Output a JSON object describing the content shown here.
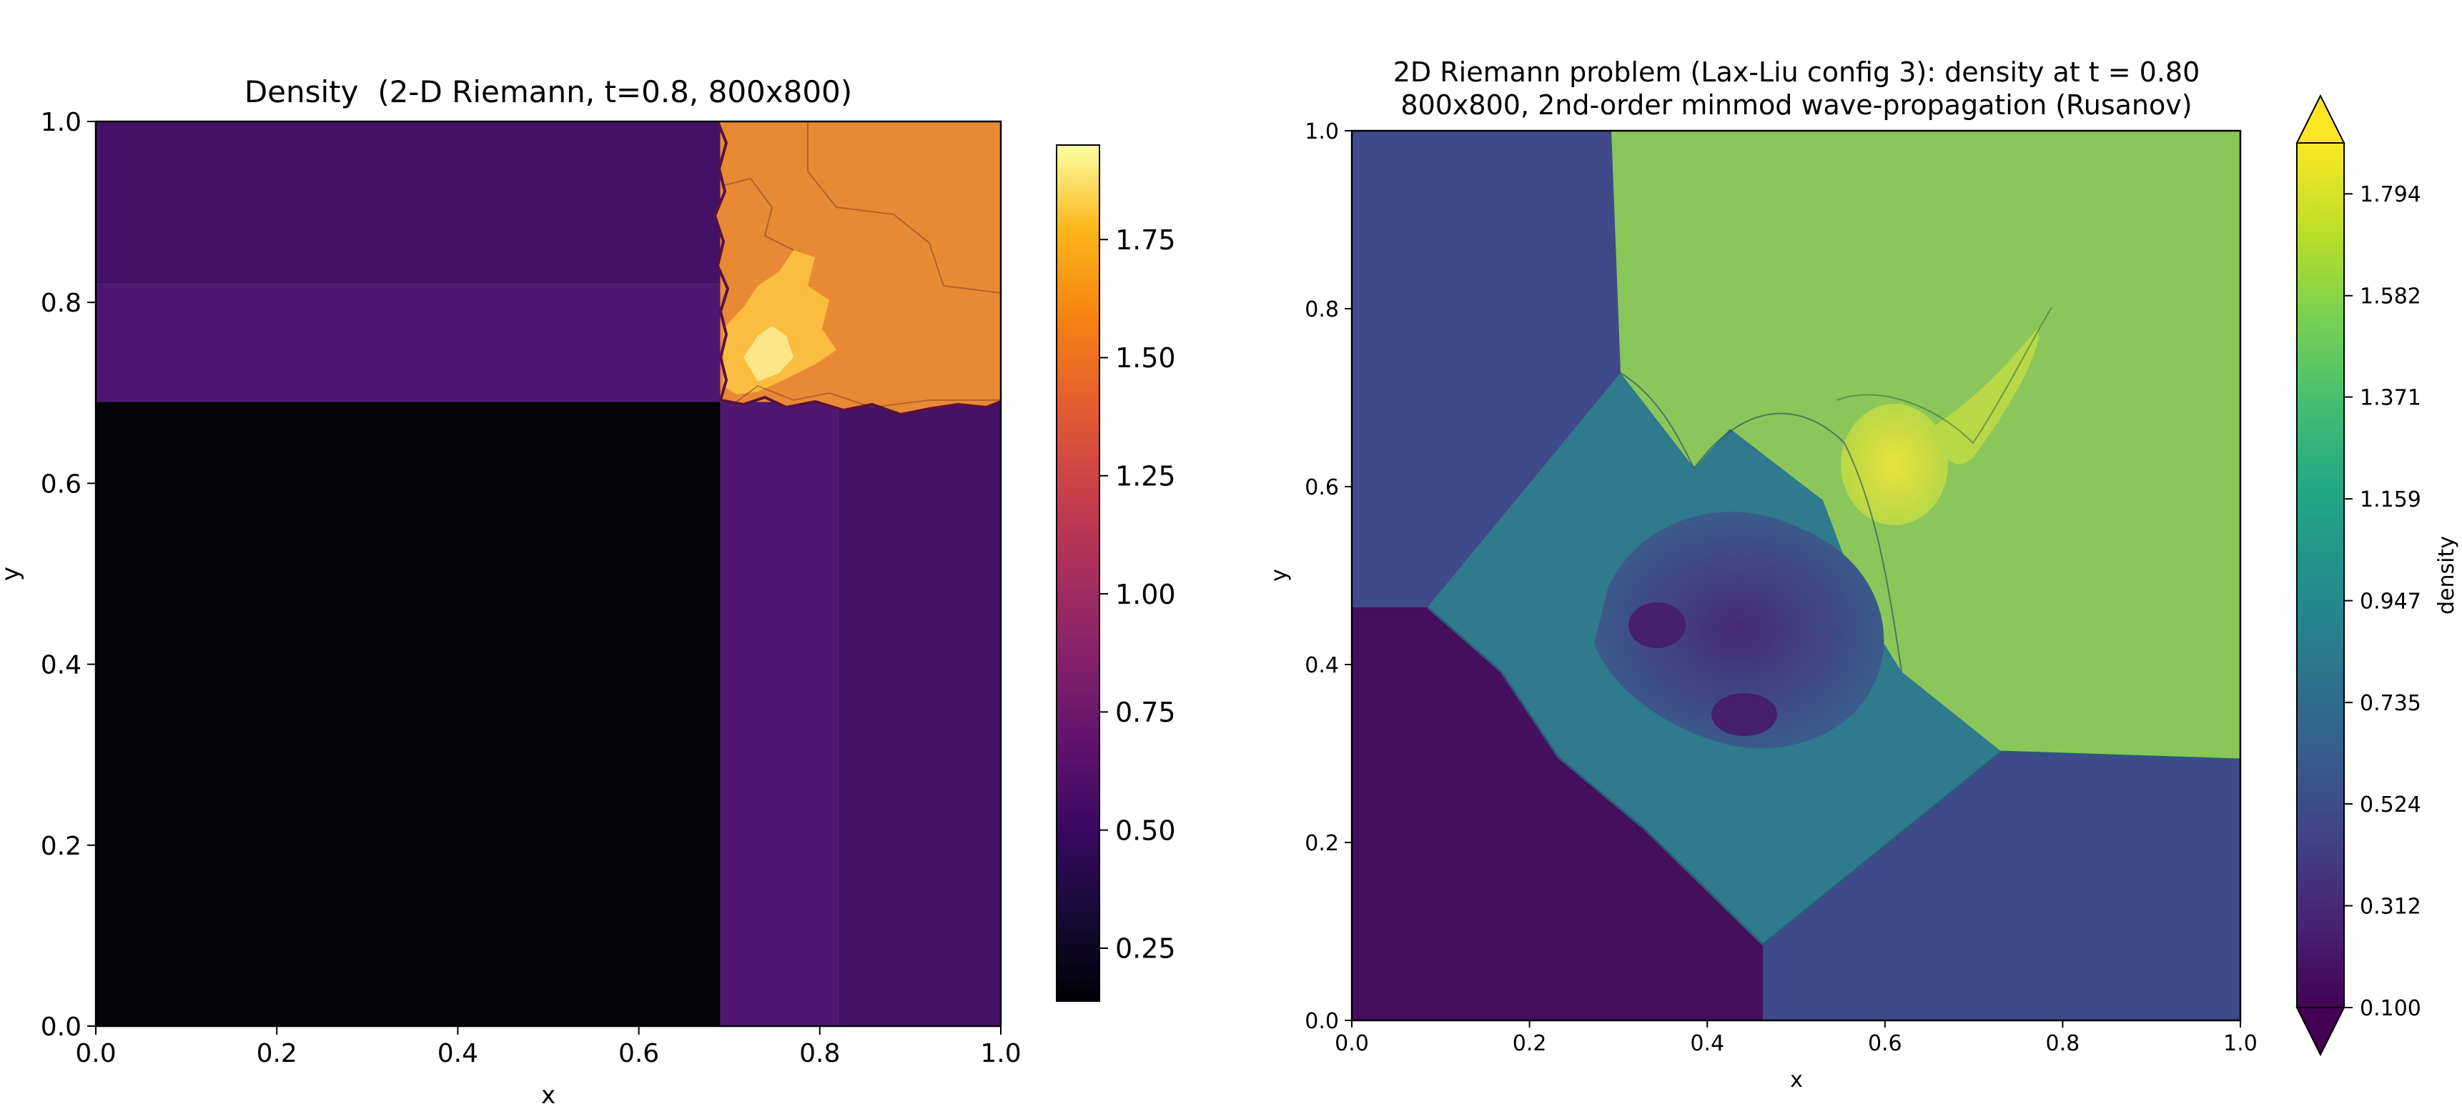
{
  "chart_data": [
    {
      "type": "heatmap",
      "title": "Density  (2-D Riemann, t=0.8, 800x800)",
      "xlabel": "x",
      "ylabel": "y",
      "xlim": [
        0.0,
        1.0
      ],
      "ylim": [
        0.0,
        1.0
      ],
      "x_ticks": [
        "0.0",
        "0.2",
        "0.4",
        "0.6",
        "0.8",
        "1.0"
      ],
      "y_ticks": [
        "0.0",
        "0.2",
        "0.4",
        "0.6",
        "0.8",
        "1.0"
      ],
      "colormap": "inferno",
      "colorbar": {
        "range": [
          0.138,
          1.95
        ],
        "ticks": [
          "0.25",
          "0.50",
          "0.75",
          "1.00",
          "1.25",
          "1.50",
          "1.75"
        ],
        "label": ""
      },
      "regions": [
        {
          "x": [
            0.0,
            0.69
          ],
          "y": [
            0.0,
            0.69
          ],
          "value": 0.138,
          "color": "#040308"
        },
        {
          "x": [
            0.0,
            0.69
          ],
          "y": [
            0.69,
            0.82
          ],
          "value": 0.55,
          "color": "#4e1670"
        },
        {
          "x": [
            0.0,
            0.69
          ],
          "y": [
            0.82,
            1.0
          ],
          "value": 0.5,
          "color": "#431266"
        },
        {
          "x": [
            0.69,
            0.82
          ],
          "y": [
            0.0,
            0.69
          ],
          "value": 0.56,
          "color": "#4f1771"
        },
        {
          "x": [
            0.82,
            1.0
          ],
          "y": [
            0.0,
            0.69
          ],
          "value": 0.5,
          "color": "#441266"
        },
        {
          "x": [
            0.69,
            1.0
          ],
          "y": [
            0.69,
            1.0
          ],
          "value": 1.5,
          "color": "#ea8c34"
        }
      ],
      "grid": false
    },
    {
      "type": "heatmap",
      "title": "2D Riemann problem (Lax-Liu config 3): density at t = 0.80",
      "subtitle": "800x800, 2nd-order minmod wave-propagation (Rusanov)",
      "xlabel": "x",
      "ylabel": "y",
      "xlim": [
        0.0,
        1.0
      ],
      "ylim": [
        0.0,
        1.0
      ],
      "x_ticks": [
        "0.0",
        "0.2",
        "0.4",
        "0.6",
        "0.8",
        "1.0"
      ],
      "y_ticks": [
        "0.0",
        "0.2",
        "0.4",
        "0.6",
        "0.8",
        "1.0"
      ],
      "colormap": "viridis",
      "colorbar": {
        "range": [
          0.1,
          1.9
        ],
        "ticks": [
          "0.100",
          "0.312",
          "0.524",
          "0.735",
          "0.947",
          "1.159",
          "1.371",
          "1.582",
          "1.794"
        ],
        "label": "density",
        "extend": "both"
      },
      "regions": [
        {
          "name": "lower-left",
          "value": 0.138,
          "color": "#440f5c"
        },
        {
          "name": "top-left",
          "value": 0.53,
          "color": "#3f4a8a"
        },
        {
          "name": "bottom-right",
          "value": 0.53,
          "color": "#3f4a8a"
        },
        {
          "name": "top-right",
          "value": 1.5,
          "color": "#8bc65a"
        },
        {
          "name": "jet",
          "value": 1.75,
          "color": "#d6e040"
        }
      ],
      "grid": false
    }
  ]
}
